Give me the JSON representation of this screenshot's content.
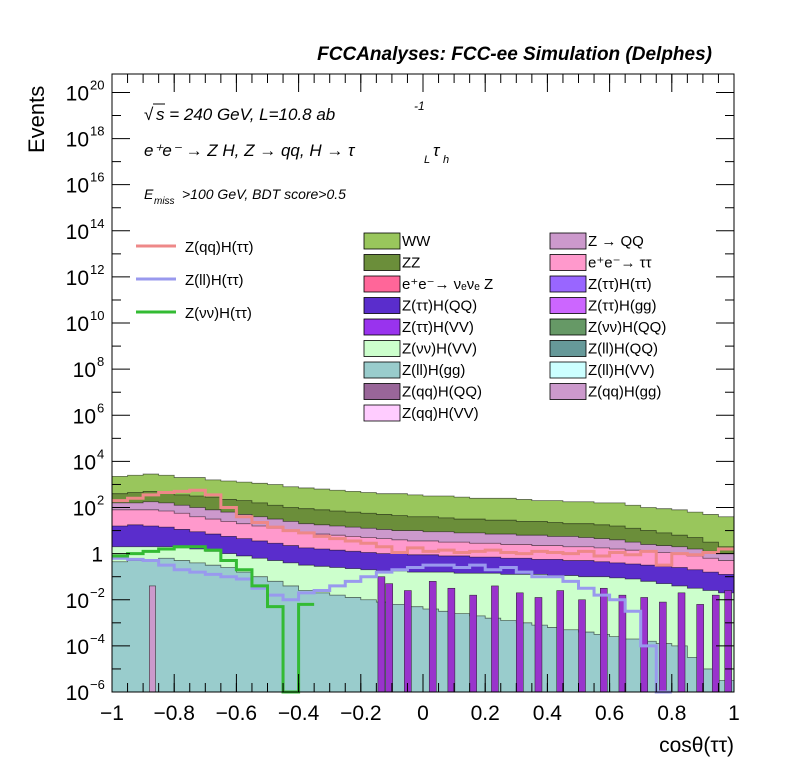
{
  "header": {
    "title": "FCCAnalyses: FCC-ee Simulation (Delphes)"
  },
  "annotations": {
    "sqrt_s": "s = 240 GeV, L=10.8 ab",
    "sqrt_sym": "√",
    "lumi_exp": "-1",
    "process": "e⁺e⁻ → Z H, Z → qq, H → τ",
    "process_sub_L": "L",
    "process_tau2": "τ",
    "process_sub_h": "h",
    "cut_E": "E",
    "cut_sub": "miss",
    "cut_rest": ">100 GeV, BDT score>0.5"
  },
  "chart_data": {
    "type": "histogram-stacked-log",
    "title": "FCCAnalyses: FCC-ee Simulation (Delphes)",
    "xlabel": "cosθ(ττ)",
    "ylabel": "Events",
    "xlim": [
      -1,
      1
    ],
    "ylim_log10": [
      -6,
      20.8
    ],
    "log_y": true,
    "x_ticks": [
      {
        "v": -1,
        "label": "−1"
      },
      {
        "v": -0.8,
        "label": "−0.8"
      },
      {
        "v": -0.6,
        "label": "−0.6"
      },
      {
        "v": -0.4,
        "label": "−0.4"
      },
      {
        "v": -0.2,
        "label": "−0.2"
      },
      {
        "v": 0,
        "label": "0"
      },
      {
        "v": 0.2,
        "label": "0.2"
      },
      {
        "v": 0.4,
        "label": "0.4"
      },
      {
        "v": 0.6,
        "label": "0.6"
      },
      {
        "v": 0.8,
        "label": "0.8"
      },
      {
        "v": 1,
        "label": "1"
      }
    ],
    "y_ticks": [
      {
        "exp": 20,
        "base": "10",
        "sup": "20"
      },
      {
        "exp": 18,
        "base": "10",
        "sup": "18"
      },
      {
        "exp": 16,
        "base": "10",
        "sup": "16"
      },
      {
        "exp": 14,
        "base": "10",
        "sup": "14"
      },
      {
        "exp": 12,
        "base": "10",
        "sup": "12"
      },
      {
        "exp": 10,
        "base": "10",
        "sup": "10"
      },
      {
        "exp": 8,
        "base": "10",
        "sup": "8"
      },
      {
        "exp": 6,
        "base": "10",
        "sup": "6"
      },
      {
        "exp": 4,
        "base": "10",
        "sup": "4"
      },
      {
        "exp": 2,
        "base": "10",
        "sup": "2"
      },
      {
        "exp": 0,
        "base": "1",
        "sup": ""
      },
      {
        "exp": -2,
        "base": "10",
        "sup": "−2"
      },
      {
        "exp": -4,
        "base": "10",
        "sup": "−4"
      },
      {
        "exp": -6,
        "base": "10",
        "sup": "−6"
      }
    ],
    "stack_bands": [
      {
        "name": "WW",
        "color": "#99c65c",
        "x": [
          -1.0,
          -0.95,
          -0.9,
          -0.85,
          -0.8,
          -0.75,
          -0.7,
          -0.65,
          -0.6,
          -0.55,
          -0.5,
          -0.45,
          -0.4,
          -0.35,
          -0.3,
          -0.25,
          -0.2,
          -0.15,
          -0.1,
          -0.05,
          0.0,
          0.05,
          0.1,
          0.15,
          0.2,
          0.25,
          0.3,
          0.35,
          0.4,
          0.45,
          0.5,
          0.55,
          0.6,
          0.65,
          0.7,
          0.75,
          0.8,
          0.85,
          0.9,
          0.95,
          1.0
        ],
        "top": [
          3.35,
          3.4,
          3.45,
          3.4,
          3.3,
          3.3,
          3.2,
          3.15,
          3.1,
          3.05,
          3.0,
          2.9,
          2.85,
          2.8,
          2.75,
          2.7,
          2.65,
          2.6,
          2.6,
          2.55,
          2.5,
          2.5,
          2.45,
          2.4,
          2.4,
          2.4,
          2.35,
          2.3,
          2.3,
          2.25,
          2.25,
          2.2,
          2.2,
          2.1,
          2.0,
          1.95,
          1.9,
          1.8,
          1.7,
          1.6,
          1.5
        ]
      },
      {
        "name": "ZZ",
        "color": "#6b8e3a",
        "x": [
          -1.0,
          -0.95,
          -0.9,
          -0.85,
          -0.8,
          -0.75,
          -0.7,
          -0.65,
          -0.6,
          -0.55,
          -0.5,
          -0.45,
          -0.4,
          -0.35,
          -0.3,
          -0.25,
          -0.2,
          -0.15,
          -0.1,
          -0.05,
          0.0,
          0.05,
          0.1,
          0.15,
          0.2,
          0.25,
          0.3,
          0.35,
          0.4,
          0.45,
          0.5,
          0.55,
          0.6,
          0.65,
          0.7,
          0.75,
          0.8,
          0.85,
          0.9,
          0.95,
          1.0
        ],
        "top": [
          2.6,
          2.65,
          2.7,
          2.65,
          2.55,
          2.5,
          2.45,
          2.35,
          2.3,
          2.2,
          2.1,
          2.0,
          1.95,
          1.9,
          1.85,
          1.8,
          1.75,
          1.7,
          1.65,
          1.6,
          1.6,
          1.55,
          1.5,
          1.5,
          1.45,
          1.45,
          1.4,
          1.4,
          1.35,
          1.3,
          1.3,
          1.25,
          1.2,
          1.1,
          1.0,
          0.9,
          0.8,
          0.7,
          0.5,
          0.3,
          0.2
        ]
      },
      {
        "name": "Z → QQ",
        "color": "#cc99cc",
        "x": [
          -1.0,
          -0.95,
          -0.9,
          -0.85,
          -0.8,
          -0.75,
          -0.7,
          -0.65,
          -0.6,
          -0.55,
          -0.5,
          -0.45,
          -0.4,
          -0.35,
          -0.3,
          -0.25,
          -0.2,
          -0.15,
          -0.1,
          -0.05,
          0.0,
          0.05,
          0.1,
          0.15,
          0.2,
          0.25,
          0.3,
          0.35,
          0.4,
          0.45,
          0.5,
          0.55,
          0.6,
          0.65,
          0.7,
          0.75,
          0.8,
          0.85,
          0.9,
          0.95,
          1.0
        ],
        "top": [
          2.2,
          2.2,
          2.25,
          2.2,
          2.1,
          2.0,
          1.9,
          1.8,
          1.7,
          1.6,
          1.5,
          1.4,
          1.3,
          1.25,
          1.2,
          1.15,
          1.1,
          1.05,
          1.0,
          1.0,
          0.95,
          0.95,
          0.9,
          0.9,
          0.85,
          0.85,
          0.8,
          0.8,
          0.75,
          0.75,
          0.7,
          0.65,
          0.6,
          0.5,
          0.4,
          0.35,
          0.3,
          0.2,
          0.1,
          0.0,
          0.0
        ]
      },
      {
        "name": "e⁺e⁻ → ττ",
        "color": "#ff99cc",
        "x": [
          -1.0,
          -0.95,
          -0.9,
          -0.85,
          -0.8,
          -0.75,
          -0.7,
          -0.65,
          -0.6,
          -0.55,
          -0.5,
          -0.45,
          -0.4,
          -0.35,
          -0.3,
          -0.25,
          -0.2,
          -0.15,
          -0.1,
          -0.05,
          0.0,
          0.05,
          0.1,
          0.15,
          0.2,
          0.25,
          0.3,
          0.35,
          0.4,
          0.45,
          0.5,
          0.55,
          0.6,
          0.65,
          0.7,
          0.75,
          0.8,
          0.85,
          0.9,
          0.95,
          1.0
        ],
        "top": [
          1.9,
          1.9,
          1.9,
          1.85,
          1.75,
          1.6,
          1.5,
          1.4,
          1.3,
          1.2,
          1.1,
          1.0,
          0.9,
          0.85,
          0.8,
          0.75,
          0.7,
          0.65,
          0.6,
          0.55,
          0.55,
          0.5,
          0.5,
          0.45,
          0.45,
          0.4,
          0.4,
          0.35,
          0.35,
          0.3,
          0.3,
          0.25,
          0.2,
          0.15,
          0.1,
          0.05,
          0.0,
          -0.1,
          -0.2,
          -0.3,
          -0.4
        ]
      },
      {
        "name": "Z(ττ)H(QQ)",
        "color": "#5a2dcc",
        "x": [
          -1.0,
          -0.95,
          -0.9,
          -0.85,
          -0.8,
          -0.75,
          -0.7,
          -0.65,
          -0.6,
          -0.55,
          -0.5,
          -0.45,
          -0.4,
          -0.35,
          -0.3,
          -0.25,
          -0.2,
          -0.15,
          -0.1,
          -0.05,
          0.0,
          0.05,
          0.1,
          0.15,
          0.2,
          0.25,
          0.3,
          0.35,
          0.4,
          0.45,
          0.5,
          0.55,
          0.6,
          0.65,
          0.7,
          0.75,
          0.8,
          0.85,
          0.9,
          0.95,
          1.0
        ],
        "top": [
          1.2,
          1.25,
          1.2,
          1.15,
          1.05,
          0.95,
          0.85,
          0.75,
          0.65,
          0.55,
          0.45,
          0.35,
          0.25,
          0.2,
          0.15,
          0.1,
          0.05,
          0.0,
          0.0,
          -0.05,
          -0.05,
          -0.1,
          -0.1,
          -0.15,
          -0.15,
          -0.2,
          -0.2,
          -0.25,
          -0.25,
          -0.3,
          -0.3,
          -0.35,
          -0.4,
          -0.45,
          -0.5,
          -0.55,
          -0.6,
          -0.7,
          -0.8,
          -0.9,
          -1.0
        ]
      },
      {
        "name": "Z(νν)H(VV)",
        "color": "#ccffcc",
        "x": [
          -1.0,
          -0.95,
          -0.9,
          -0.85,
          -0.8,
          -0.75,
          -0.7,
          -0.65,
          -0.6,
          -0.55,
          -0.5,
          -0.45,
          -0.4,
          -0.35,
          -0.3,
          -0.25,
          -0.2,
          -0.15,
          -0.1,
          -0.05,
          0.0,
          0.05,
          0.1,
          0.15,
          0.2,
          0.25,
          0.3,
          0.35,
          0.4,
          0.45,
          0.5,
          0.55,
          0.6,
          0.65,
          0.7,
          0.75,
          0.8,
          0.85,
          0.9,
          0.95,
          1.0
        ],
        "top": [
          0.3,
          0.3,
          0.3,
          0.3,
          0.25,
          0.2,
          0.1,
          0.0,
          -0.1,
          -0.2,
          -0.3,
          -0.4,
          -0.5,
          -0.55,
          -0.6,
          -0.65,
          -0.7,
          -0.75,
          -0.75,
          -0.8,
          -0.8,
          -0.8,
          -0.85,
          -0.85,
          -0.85,
          -0.9,
          -0.9,
          -0.9,
          -0.95,
          -0.95,
          -1.0,
          -1.0,
          -1.05,
          -1.1,
          -1.2,
          -1.3,
          -1.4,
          -1.5,
          -1.6,
          -1.7,
          -1.8
        ]
      },
      {
        "name": "Z(ll)H(gg)",
        "color": "#99cccc",
        "x": [
          -1.0,
          -0.95,
          -0.9,
          -0.85,
          -0.8,
          -0.75,
          -0.7,
          -0.65,
          -0.6,
          -0.55,
          -0.5,
          -0.45,
          -0.4,
          -0.35,
          -0.3,
          -0.25,
          -0.2,
          -0.15,
          -0.1,
          -0.05,
          0.0,
          0.05,
          0.1,
          0.15,
          0.2,
          0.25,
          0.3,
          0.35,
          0.4,
          0.45,
          0.5,
          0.55,
          0.6,
          0.65,
          0.7,
          0.75,
          0.8,
          0.85,
          0.9,
          0.95,
          1.0
        ],
        "top": [
          -0.35,
          -0.3,
          -0.25,
          -0.2,
          -0.3,
          -0.4,
          -0.5,
          -0.6,
          -0.8,
          -1.0,
          -1.2,
          -1.4,
          -1.6,
          -1.7,
          -1.8,
          -1.9,
          -2.0,
          -2.1,
          -2.2,
          -2.3,
          -2.4,
          -2.5,
          -2.6,
          -2.7,
          -2.8,
          -2.9,
          -3.0,
          -3.1,
          -3.2,
          -3.3,
          -3.4,
          -3.5,
          -3.6,
          -3.7,
          -3.8,
          -3.9,
          -4.0,
          -4.5,
          -5.0,
          -5.5,
          -6.0
        ]
      }
    ],
    "spikes": {
      "color": "#9933cc",
      "x": [
        -0.145,
        -0.12,
        -0.06,
        0.02,
        0.08,
        0.15,
        0.22,
        0.3,
        0.36,
        0.43,
        0.5,
        0.57,
        0.63,
        0.7,
        0.76,
        0.82,
        0.88,
        0.93,
        0.97
      ],
      "top": [
        -1.0,
        -1.3,
        -1.6,
        -1.2,
        -1.5,
        -1.8,
        -1.4,
        -1.7,
        -1.9,
        -1.6,
        -2.0,
        -1.5,
        -1.8,
        -1.9,
        -2.1,
        -1.7,
        -2.2,
        -1.8,
        -1.6
      ]
    },
    "single_bar": {
      "x": [
        -0.88,
        -0.86
      ],
      "top": -1.4,
      "color": "#cc99cc"
    },
    "series": [
      {
        "name": "Z(qq)H(ττ)",
        "color": "#ee8888",
        "x": [
          -1.0,
          -0.95,
          -0.9,
          -0.85,
          -0.8,
          -0.75,
          -0.7,
          -0.65,
          -0.6,
          -0.55,
          -0.5,
          -0.45,
          -0.4,
          -0.35,
          -0.3,
          -0.25,
          -0.2,
          -0.15,
          -0.1,
          -0.05,
          0.0,
          0.05,
          0.1,
          0.15,
          0.2,
          0.25,
          0.3,
          0.35,
          0.4,
          0.45,
          0.5,
          0.55,
          0.6,
          0.65,
          0.7,
          0.75,
          0.8,
          0.85,
          0.9,
          0.95,
          1.0
        ],
        "y": [
          2.3,
          2.4,
          2.55,
          2.65,
          2.7,
          2.75,
          2.55,
          2.0,
          1.6,
          1.35,
          1.15,
          1.0,
          0.9,
          0.75,
          0.65,
          0.55,
          0.45,
          0.3,
          0.05,
          0.25,
          0.1,
          0.15,
          0.05,
          0.1,
          0.15,
          0.05,
          0.0,
          0.1,
          0.05,
          0.0,
          0.1,
          -0.1,
          0.05,
          -0.05,
          0.1,
          -0.5,
          0.0,
          -0.05,
          0.05,
          0.2,
          0.3
        ]
      },
      {
        "name": "Z(ll)H(ττ)",
        "color": "#9999ee",
        "x": [
          -1.0,
          -0.95,
          -0.9,
          -0.85,
          -0.8,
          -0.75,
          -0.7,
          -0.65,
          -0.6,
          -0.55,
          -0.5,
          -0.45,
          -0.4,
          -0.35,
          -0.3,
          -0.25,
          -0.2,
          -0.15,
          -0.1,
          -0.05,
          0.0,
          0.05,
          0.1,
          0.15,
          0.2,
          0.25,
          0.3,
          0.35,
          0.4,
          0.45,
          0.5,
          0.55,
          0.6,
          0.65,
          0.7,
          0.75,
          0.8
        ],
        "y": [
          -0.2,
          -0.25,
          -0.3,
          -0.5,
          -0.7,
          -0.8,
          -0.9,
          -1.0,
          -1.1,
          -1.5,
          -1.8,
          -2.0,
          -1.7,
          -1.6,
          -1.4,
          -1.2,
          -1.0,
          -0.8,
          -0.7,
          -0.6,
          -0.5,
          -0.5,
          -0.6,
          -0.5,
          -0.7,
          -0.6,
          -0.8,
          -1.0,
          -1.0,
          -1.2,
          -1.5,
          -1.8,
          -2.0,
          -2.5,
          -4.0,
          -6.5,
          -6.5
        ]
      },
      {
        "name": "Z(νν)H(ττ)",
        "color": "#33bb33",
        "x": [
          -1.0,
          -0.95,
          -0.9,
          -0.85,
          -0.8,
          -0.75,
          -0.7,
          -0.65,
          -0.6,
          -0.55,
          -0.5,
          -0.45,
          -0.4,
          -0.35
        ],
        "y": [
          -0.1,
          0.0,
          0.1,
          0.2,
          0.3,
          0.3,
          0.15,
          -0.3,
          -0.7,
          -1.4,
          -2.3,
          -6.5,
          -2.2,
          -6.5
        ]
      }
    ]
  },
  "legend_left": [
    {
      "label": "Z(qq)H(ττ)",
      "color": "#ee8888"
    },
    {
      "label": "Z(ll)H(ττ)",
      "color": "#9999ee"
    },
    {
      "label": "Z(νν)H(ττ)",
      "color": "#33bb33"
    }
  ],
  "legend_mid": [
    {
      "label": "WW",
      "color": "#99c65c"
    },
    {
      "label": "ZZ",
      "color": "#6b8e3a"
    },
    {
      "label": "e⁺e⁻→ νₑνₑ Z",
      "color": "#ff6699"
    },
    {
      "label": "Z(ττ)H(QQ)",
      "color": "#5a2dcc"
    },
    {
      "label": "Z(ττ)H(VV)",
      "color": "#9933ee"
    },
    {
      "label": "Z(νν)H(VV)",
      "color": "#ccffcc"
    },
    {
      "label": "Z(ll)H(gg)",
      "color": "#99cccc"
    },
    {
      "label": "Z(qq)H(QQ)",
      "color": "#996699"
    },
    {
      "label": "Z(qq)H(VV)",
      "color": "#ffccff"
    }
  ],
  "legend_right": [
    {
      "label": "Z → QQ",
      "color": "#cc99cc"
    },
    {
      "label": "e⁺e⁻→ ττ",
      "color": "#ff99cc"
    },
    {
      "label": "Z(ττ)H(ττ)",
      "color": "#9966ff"
    },
    {
      "label": "Z(ττ)H(gg)",
      "color": "#cc66ff"
    },
    {
      "label": "Z(νν)H(QQ)",
      "color": "#669966"
    },
    {
      "label": "Z(ll)H(QQ)",
      "color": "#669999"
    },
    {
      "label": "Z(ll)H(VV)",
      "color": "#ccffff"
    },
    {
      "label": "Z(qq)H(gg)",
      "color": "#cc99cc"
    }
  ]
}
